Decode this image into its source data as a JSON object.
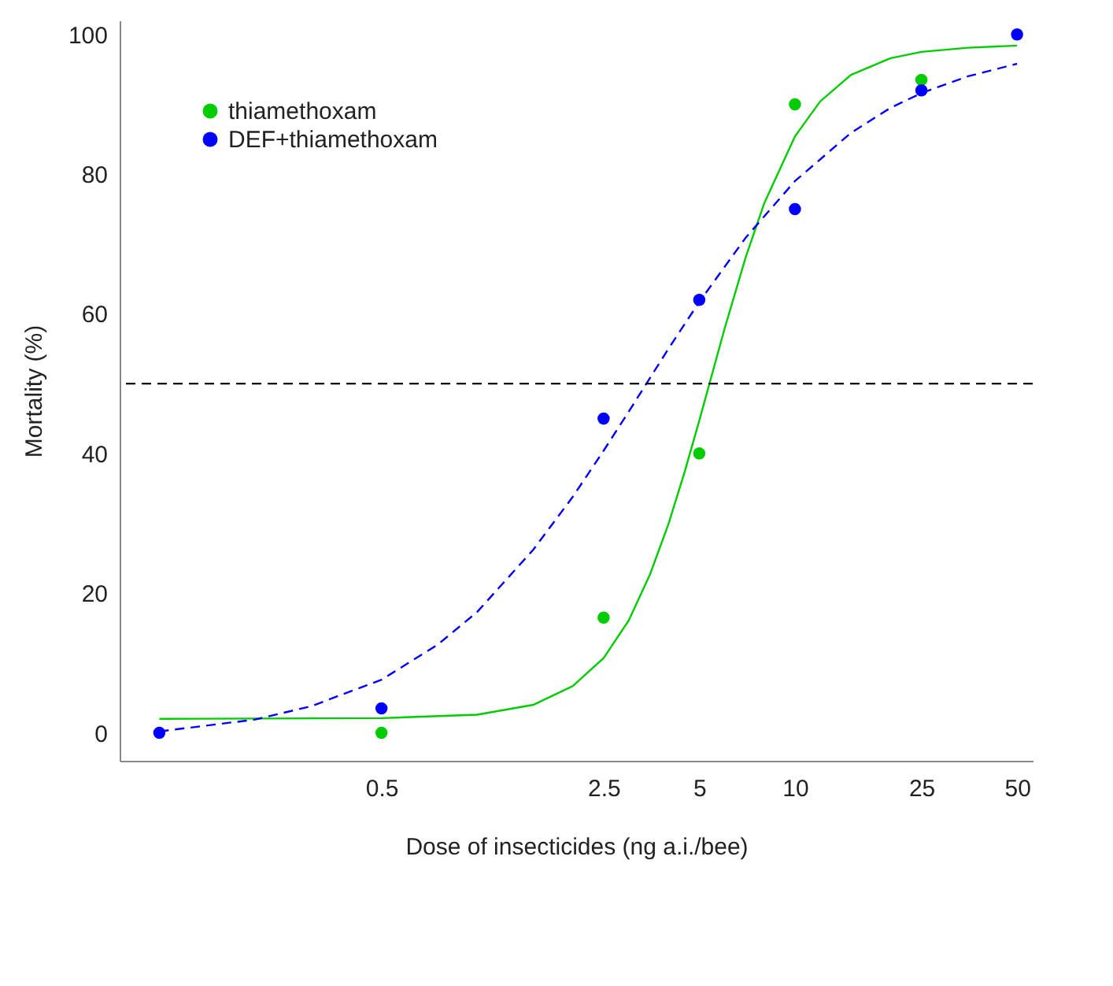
{
  "chart_data": {
    "type": "scatter",
    "xlabel": "Dose of insecticides (ng a.i./bee)",
    "ylabel": "Mortality (%)",
    "log": "x",
    "xlim": [
      0.075,
      56
    ],
    "xticks": [
      0.5,
      2.5,
      5,
      10,
      25,
      50
    ],
    "ylim": [
      -4,
      102
    ],
    "yticks": [
      0,
      20,
      40,
      60,
      80,
      100
    ],
    "grid": false,
    "legend": "top left",
    "marker": "circle",
    "series": [
      {
        "name": "thiamethoxam",
        "color": "#00cc00",
        "x": [
          0.5,
          2.5,
          5,
          10,
          25
        ],
        "values": [
          0,
          16.5,
          40,
          90,
          93.5
        ]
      },
      {
        "name": "DEF+thiamethoxam",
        "color": "#0000ff",
        "x": [
          0.1,
          0.5,
          2.5,
          5,
          10,
          25,
          50
        ],
        "values": [
          0,
          3.5,
          45,
          62,
          75,
          92,
          100
        ]
      },
      {
        "type": "line",
        "color": "#00cc00",
        "line_style": "solid",
        "marker": "none",
        "x": [
          0.1,
          0.5,
          1,
          1.5,
          2,
          2.5,
          3,
          3.5,
          4,
          4.5,
          5,
          6,
          7,
          8,
          10,
          12,
          15,
          20,
          25,
          35,
          50
        ],
        "values": [
          2,
          2.1,
          2.6,
          4,
          6.7,
          10.7,
          16.1,
          22.7,
          29.9,
          37.4,
          44.7,
          57.8,
          68.1,
          75.8,
          85.4,
          90.4,
          94.2,
          96.6,
          97.5,
          98.1,
          98.4
        ]
      },
      {
        "type": "line",
        "color": "#0000ff",
        "line_style": "dashed",
        "marker": "none",
        "x": [
          0.1,
          0.2,
          0.3,
          0.5,
          0.75,
          1,
          1.5,
          2,
          2.5,
          3,
          4,
          5,
          7,
          10,
          15,
          20,
          25,
          35,
          50
        ],
        "values": [
          0.2,
          1.9,
          3.8,
          7.6,
          12.6,
          17.3,
          26.2,
          33.8,
          40.4,
          46,
          55,
          61.7,
          70.9,
          79,
          85.9,
          89.5,
          91.6,
          94,
          95.8
        ]
      }
    ],
    "ref_lines": [
      {
        "axis": "y",
        "value": 50,
        "color": "#000000",
        "line_style": "dashed"
      }
    ]
  }
}
